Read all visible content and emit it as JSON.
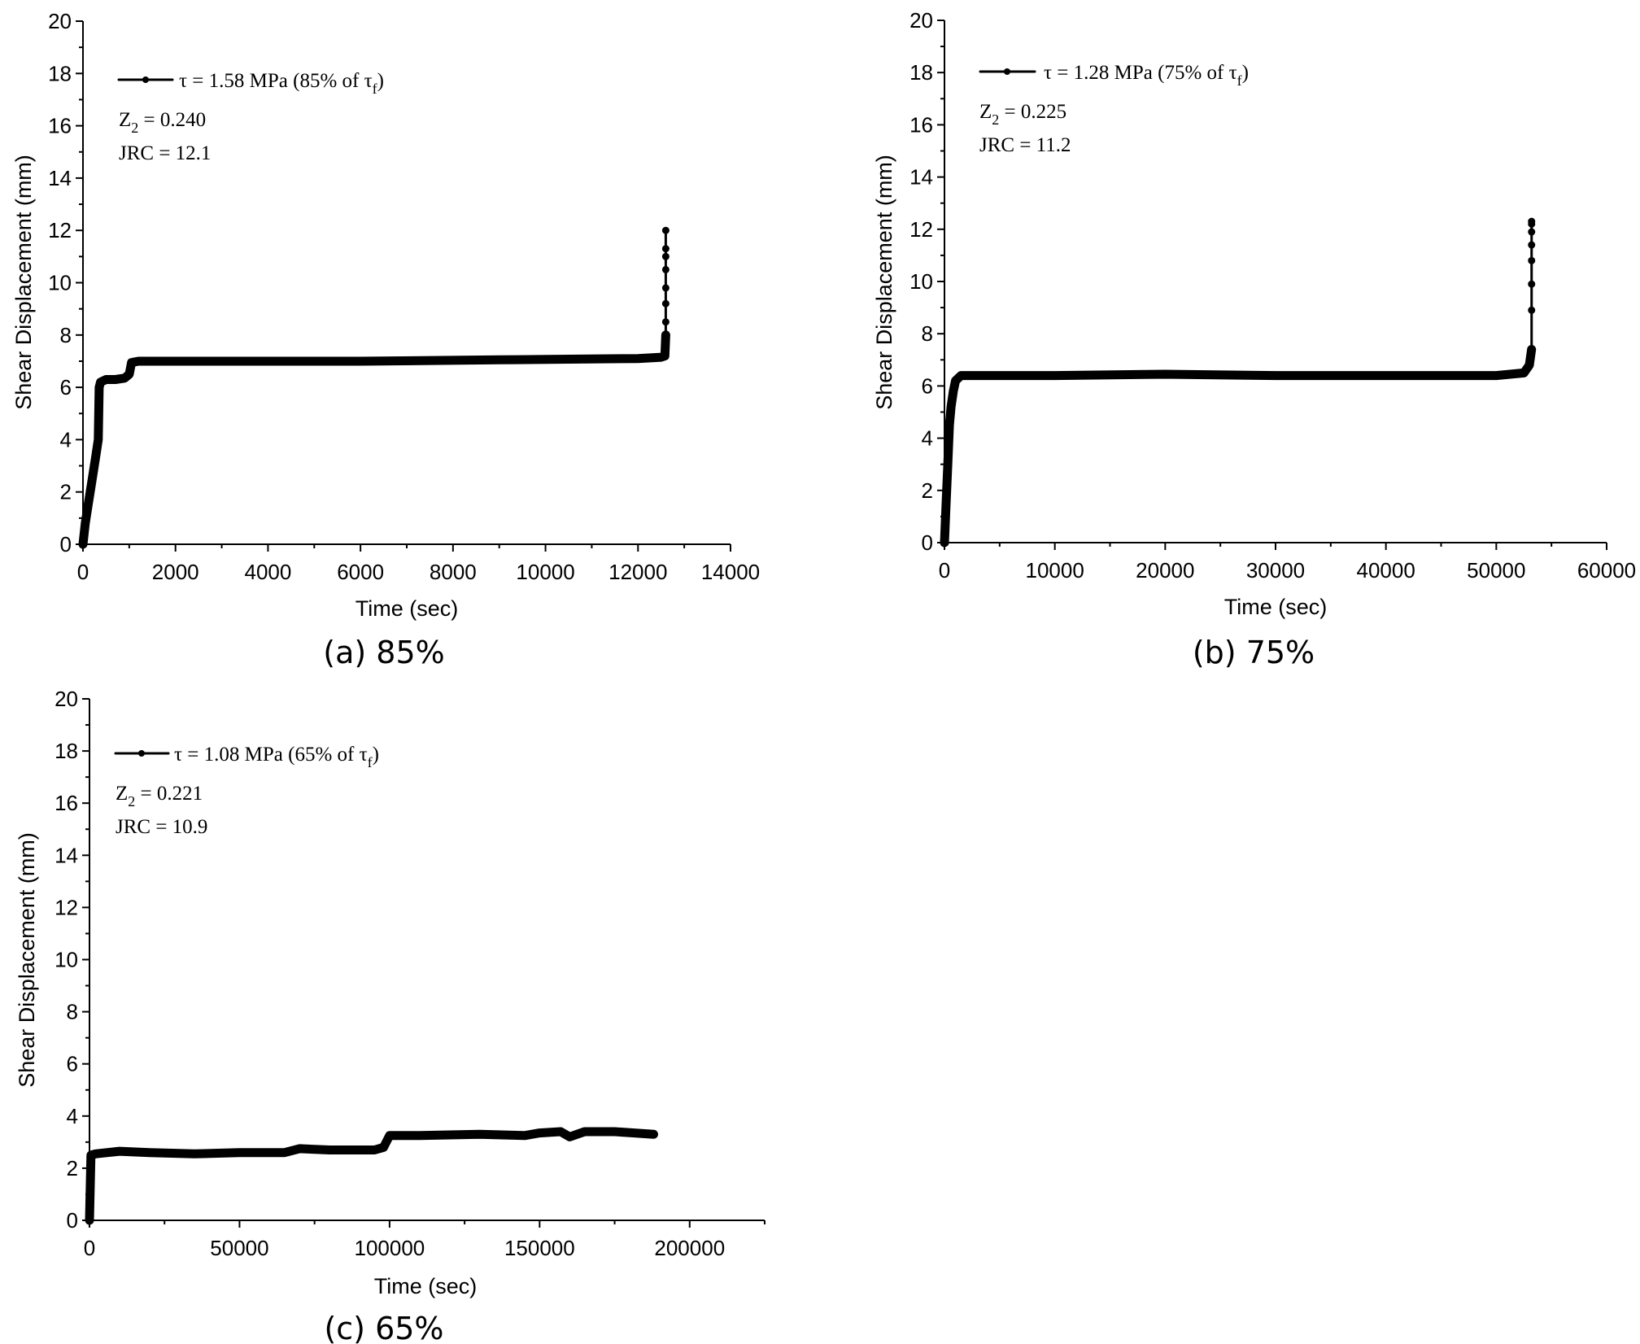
{
  "colors": {
    "series": "#000000",
    "axis": "#000000",
    "background": "#ffffff"
  },
  "chart_data": [
    {
      "type": "line",
      "caption": "(a) 85%",
      "xlabel": "Time (sec)",
      "ylabel": "Shear Displacement (mm)",
      "xlim": [
        0,
        14000
      ],
      "ylim": [
        0,
        20
      ],
      "xticks": [
        "0",
        "2000",
        "4000",
        "6000",
        "8000",
        "10000",
        "12000",
        "14000"
      ],
      "yticks": [
        "0",
        "2",
        "4",
        "6",
        "8",
        "10",
        "12",
        "14",
        "16",
        "18",
        "20"
      ],
      "legend": "τ = 1.58 MPa (85% of τ_f)",
      "legend_position": "top-left",
      "annotations": [
        "Z_2 = 0.240",
        "JRC = 12.1"
      ],
      "series": [
        {
          "name": "τ = 1.58 MPa (85% of τ_f)",
          "x": [
            0,
            50,
            120,
            200,
            280,
            330,
            350,
            380,
            500,
            700,
            900,
            1000,
            1050,
            1200,
            3000,
            6000,
            9000,
            12000,
            12500,
            12580,
            12600
          ],
          "y": [
            0,
            0.8,
            1.6,
            2.5,
            3.4,
            4.0,
            6.0,
            6.2,
            6.3,
            6.3,
            6.35,
            6.5,
            6.95,
            7.0,
            7.0,
            7.0,
            7.05,
            7.1,
            7.15,
            7.2,
            8.0
          ]
        }
      ],
      "spike_markers": [
        {
          "x": 12600,
          "y": 8.5
        },
        {
          "x": 12600,
          "y": 9.2
        },
        {
          "x": 12600,
          "y": 9.8
        },
        {
          "x": 12600,
          "y": 10.5
        },
        {
          "x": 12600,
          "y": 11.0
        },
        {
          "x": 12600,
          "y": 11.3
        },
        {
          "x": 12600,
          "y": 12.0
        }
      ]
    },
    {
      "type": "line",
      "caption": "(b) 75%",
      "xlabel": "Time (sec)",
      "ylabel": "Shear Displacement (mm)",
      "xlim": [
        0,
        60000
      ],
      "ylim": [
        0,
        20
      ],
      "xticks": [
        "0",
        "10000",
        "20000",
        "30000",
        "40000",
        "50000",
        "60000"
      ],
      "yticks": [
        "0",
        "2",
        "4",
        "6",
        "8",
        "10",
        "12",
        "14",
        "16",
        "18",
        "20"
      ],
      "legend": "τ = 1.28 MPa (75% of τ_f)",
      "legend_position": "top-left",
      "annotations": [
        "Z_2 = 0.225",
        "JRC = 11.2"
      ],
      "series": [
        {
          "name": "τ = 1.28 MPa (75% of τ_f)",
          "x": [
            0,
            150,
            300,
            450,
            600,
            800,
            1000,
            1500,
            3000,
            10000,
            20000,
            30000,
            40000,
            50000,
            52500,
            53000,
            53200
          ],
          "y": [
            0,
            1.5,
            3.0,
            4.5,
            5.2,
            5.8,
            6.2,
            6.4,
            6.4,
            6.4,
            6.45,
            6.4,
            6.4,
            6.4,
            6.5,
            6.8,
            7.4
          ]
        }
      ],
      "spike_markers": [
        {
          "x": 53200,
          "y": 8.9
        },
        {
          "x": 53200,
          "y": 9.9
        },
        {
          "x": 53200,
          "y": 10.8
        },
        {
          "x": 53200,
          "y": 11.4
        },
        {
          "x": 53200,
          "y": 11.9
        },
        {
          "x": 53200,
          "y": 12.2
        },
        {
          "x": 53200,
          "y": 12.3
        }
      ]
    },
    {
      "type": "line",
      "caption": "(c) 65%",
      "xlabel": "Time (sec)",
      "ylabel": "Shear Displacement (mm)",
      "xlim": [
        0,
        225000
      ],
      "ylim": [
        0,
        20
      ],
      "xticks": [
        "0",
        "50000",
        "100000",
        "150000",
        "200000"
      ],
      "yticks": [
        "0",
        "2",
        "4",
        "6",
        "8",
        "10",
        "12",
        "14",
        "16",
        "18",
        "20"
      ],
      "legend": "τ = 1.08 MPa (65% of τ_f)",
      "legend_position": "top-left",
      "annotations": [
        "Z_2 = 0.221",
        "JRC = 10.9"
      ],
      "series": [
        {
          "name": "τ = 1.08 MPa (65% of τ_f)",
          "x": [
            0,
            500,
            2000,
            10000,
            20000,
            35000,
            50000,
            65000,
            70000,
            80000,
            95000,
            98000,
            100000,
            110000,
            130000,
            145000,
            150000,
            157000,
            160000,
            165000,
            175000,
            188000
          ],
          "y": [
            0,
            2.5,
            2.55,
            2.65,
            2.6,
            2.55,
            2.6,
            2.6,
            2.75,
            2.7,
            2.7,
            2.8,
            3.25,
            3.25,
            3.3,
            3.25,
            3.35,
            3.4,
            3.2,
            3.4,
            3.4,
            3.3
          ]
        }
      ],
      "spike_markers": []
    }
  ],
  "legend_parts": [
    {
      "tau": "τ = 1.58 MPa (85% of τ",
      "sub": "f",
      "close": ")"
    },
    {
      "tau": "τ = 1.28 MPa (75% of τ",
      "sub": "f",
      "close": ")"
    },
    {
      "tau": "τ = 1.08 MPa (65% of τ",
      "sub": "f",
      "close": ")"
    }
  ],
  "annotation_parts": [
    {
      "z_main": "Z",
      "z_sub": "2",
      "z_value": " = 0.240",
      "jrc": "JRC = 12.1"
    },
    {
      "z_main": "Z",
      "z_sub": "2",
      "z_value": " = 0.225",
      "jrc": "JRC = 11.2"
    },
    {
      "z_main": "Z",
      "z_sub": "2",
      "z_value": " = 0.221",
      "jrc": "JRC = 10.9"
    }
  ]
}
